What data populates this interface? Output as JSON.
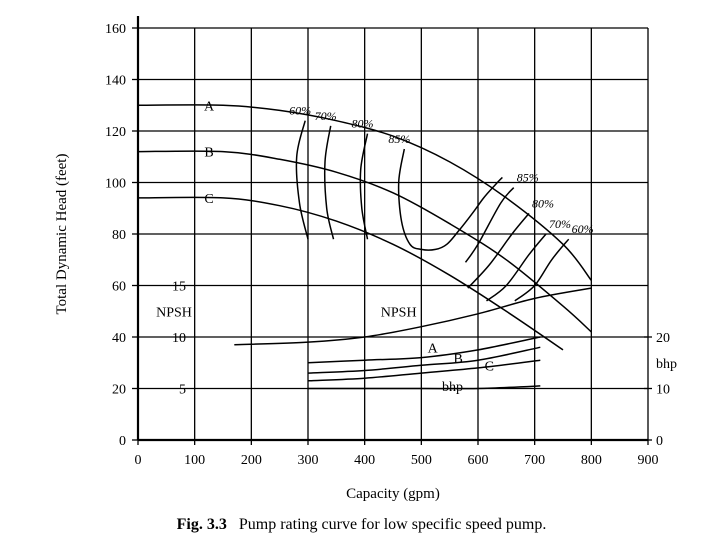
{
  "caption": {
    "prefix": "Fig. 3.3",
    "text": "Pump rating curve for low specific speed pump."
  },
  "chart_data": {
    "type": "line",
    "title": "",
    "xlabel": "Capacity (gpm)",
    "ylabel": "Total Dynamic Head (feet)",
    "xlim": [
      0,
      900
    ],
    "ylim": [
      0,
      160
    ],
    "x_ticks": [
      0,
      100,
      200,
      300,
      400,
      500,
      600,
      700,
      800,
      900
    ],
    "y_ticks": [
      0,
      20,
      40,
      60,
      80,
      100,
      120,
      140,
      160
    ],
    "grid": true,
    "npsh_scale": {
      "label": "NPSH",
      "ticks": [
        {
          "value": 5,
          "head": 20
        },
        {
          "value": 10,
          "head": 40
        },
        {
          "value": 15,
          "head": 60
        }
      ]
    },
    "bhp_scale": {
      "label": "bhp",
      "ticks": [
        {
          "value": 0,
          "head": 0
        },
        {
          "value": 10,
          "head": 20
        },
        {
          "value": 20,
          "head": 40
        }
      ]
    },
    "head_curves": [
      {
        "name": "A",
        "points": [
          [
            0,
            130
          ],
          [
            150,
            130
          ],
          [
            250,
            128
          ],
          [
            350,
            124
          ],
          [
            450,
            118
          ],
          [
            550,
            108
          ],
          [
            650,
            94
          ],
          [
            750,
            76
          ],
          [
            800,
            62
          ]
        ]
      },
      {
        "name": "B",
        "points": [
          [
            0,
            112
          ],
          [
            150,
            112
          ],
          [
            250,
            109
          ],
          [
            350,
            104
          ],
          [
            450,
            96
          ],
          [
            550,
            84
          ],
          [
            650,
            70
          ],
          [
            750,
            52
          ],
          [
            800,
            42
          ]
        ]
      },
      {
        "name": "C",
        "points": [
          [
            0,
            94
          ],
          [
            150,
            94
          ],
          [
            250,
            91
          ],
          [
            350,
            85
          ],
          [
            450,
            76
          ],
          [
            550,
            64
          ],
          [
            650,
            50
          ],
          [
            750,
            35
          ]
        ]
      }
    ],
    "efficiency_contours": [
      {
        "name": "60%",
        "points": [
          [
            295,
            124
          ],
          [
            280,
            110
          ],
          [
            285,
            92
          ],
          [
            300,
            78
          ]
        ]
      },
      {
        "name": "70%",
        "points": [
          [
            340,
            122
          ],
          [
            330,
            108
          ],
          [
            333,
            90
          ],
          [
            345,
            78
          ]
        ]
      },
      {
        "name": "80%",
        "points": [
          [
            405,
            119
          ],
          [
            393,
            105
          ],
          [
            395,
            90
          ],
          [
            405,
            78
          ]
        ]
      },
      {
        "name": "85%",
        "points": [
          [
            470,
            113
          ],
          [
            460,
            100
          ],
          [
            465,
            85
          ],
          [
            480,
            76
          ],
          [
            500,
            74
          ],
          [
            525,
            74
          ],
          [
            545,
            76
          ],
          [
            565,
            81
          ],
          [
            590,
            88
          ],
          [
            610,
            94
          ],
          [
            630,
            99
          ],
          [
            643,
            102
          ]
        ]
      },
      {
        "name": "85%",
        "points": [
          [
            578,
            69
          ],
          [
            600,
            76
          ],
          [
            640,
            92
          ],
          [
            663,
            98
          ]
        ]
      },
      {
        "name": "80%",
        "points": [
          [
            582,
            59
          ],
          [
            620,
            68
          ],
          [
            660,
            80
          ],
          [
            690,
            88
          ]
        ]
      },
      {
        "name": "70%",
        "points": [
          [
            615,
            54
          ],
          [
            650,
            60
          ],
          [
            690,
            72
          ],
          [
            720,
            80
          ]
        ]
      },
      {
        "name": "60%",
        "points": [
          [
            665,
            54
          ],
          [
            700,
            60
          ],
          [
            730,
            70
          ],
          [
            760,
            78
          ]
        ]
      }
    ],
    "npsh_curve": {
      "name": "NPSH",
      "points": [
        [
          170,
          37
        ],
        [
          300,
          38
        ],
        [
          400,
          40
        ],
        [
          500,
          44
        ],
        [
          600,
          49
        ],
        [
          700,
          55
        ],
        [
          800,
          59
        ]
      ]
    },
    "bhp_curves": [
      {
        "name": "A",
        "points": [
          [
            300,
            30
          ],
          [
            400,
            31
          ],
          [
            500,
            32
          ],
          [
            600,
            35
          ],
          [
            710,
            40
          ]
        ]
      },
      {
        "name": "B",
        "points": [
          [
            300,
            26
          ],
          [
            400,
            27
          ],
          [
            500,
            29
          ],
          [
            600,
            31
          ],
          [
            710,
            36
          ]
        ]
      },
      {
        "name": "C",
        "points": [
          [
            300,
            23
          ],
          [
            400,
            24
          ],
          [
            500,
            26
          ],
          [
            600,
            28
          ],
          [
            710,
            31
          ]
        ]
      },
      {
        "name": "bhp",
        "points": [
          [
            300,
            20
          ],
          [
            400,
            20
          ],
          [
            500,
            20
          ],
          [
            600,
            20
          ],
          [
            710,
            21
          ]
        ]
      }
    ]
  }
}
